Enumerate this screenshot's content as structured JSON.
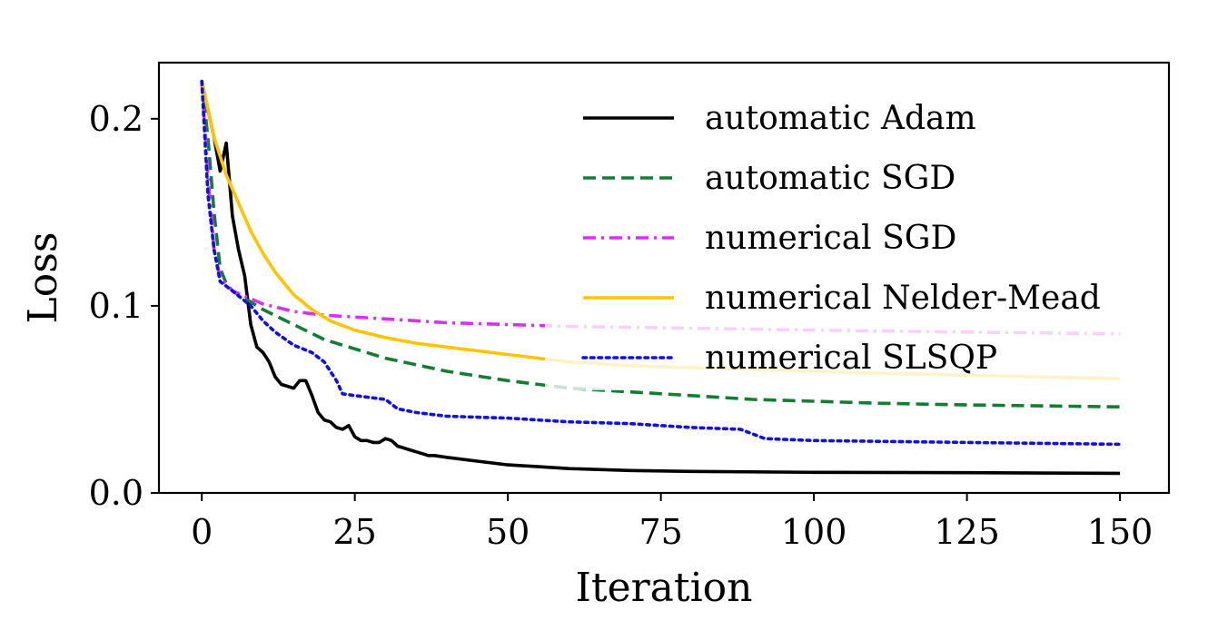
{
  "chart_data": {
    "type": "line",
    "title": "",
    "xlabel": "Iteration",
    "ylabel": "Loss",
    "xlim": [
      -7,
      158
    ],
    "ylim": [
      0.0,
      0.23
    ],
    "xticks": [
      0,
      25,
      50,
      75,
      100,
      125,
      150
    ],
    "xtick_labels": [
      "0",
      "25",
      "50",
      "75",
      "100",
      "125",
      "150"
    ],
    "yticks": [
      0.0,
      0.1,
      0.2
    ],
    "ytick_labels": [
      "0.0",
      "0.1",
      "0.2"
    ],
    "grid": false,
    "legend_position": "upper right",
    "series": [
      {
        "name": "automatic Adam",
        "color": "#000000",
        "dash": "solid",
        "points": [
          [
            0,
            0.22
          ],
          [
            1,
            0.205
          ],
          [
            2,
            0.19
          ],
          [
            3,
            0.172
          ],
          [
            4,
            0.187
          ],
          [
            5,
            0.148
          ],
          [
            6,
            0.13
          ],
          [
            7,
            0.116
          ],
          [
            8,
            0.09
          ],
          [
            9,
            0.078
          ],
          [
            10,
            0.075
          ],
          [
            11,
            0.07
          ],
          [
            12,
            0.062
          ],
          [
            13,
            0.058
          ],
          [
            14,
            0.057
          ],
          [
            15,
            0.056
          ],
          [
            16,
            0.06
          ],
          [
            17,
            0.06
          ],
          [
            18,
            0.052
          ],
          [
            19,
            0.043
          ],
          [
            20,
            0.039
          ],
          [
            21,
            0.038
          ],
          [
            22,
            0.035
          ],
          [
            23,
            0.034
          ],
          [
            24,
            0.036
          ],
          [
            25,
            0.03
          ],
          [
            26,
            0.028
          ],
          [
            27,
            0.028
          ],
          [
            28,
            0.027
          ],
          [
            29,
            0.027
          ],
          [
            30,
            0.029
          ],
          [
            31,
            0.028
          ],
          [
            32,
            0.025
          ],
          [
            33,
            0.024
          ],
          [
            34,
            0.023
          ],
          [
            35,
            0.022
          ],
          [
            36,
            0.021
          ],
          [
            37,
            0.02
          ],
          [
            38,
            0.02
          ],
          [
            40,
            0.019
          ],
          [
            45,
            0.017
          ],
          [
            50,
            0.015
          ],
          [
            55,
            0.014
          ],
          [
            60,
            0.013
          ],
          [
            70,
            0.012
          ],
          [
            80,
            0.0115
          ],
          [
            100,
            0.011
          ],
          [
            125,
            0.0108
          ],
          [
            150,
            0.0105
          ]
        ]
      },
      {
        "name": "automatic SGD",
        "color": "#137d33",
        "dash": "dashed",
        "points": [
          [
            0,
            0.22
          ],
          [
            1,
            0.19
          ],
          [
            2,
            0.15
          ],
          [
            3,
            0.12
          ],
          [
            4,
            0.112
          ],
          [
            5,
            0.108
          ],
          [
            10,
            0.098
          ],
          [
            15,
            0.09
          ],
          [
            20,
            0.082
          ],
          [
            25,
            0.077
          ],
          [
            30,
            0.072
          ],
          [
            40,
            0.065
          ],
          [
            50,
            0.06
          ],
          [
            60,
            0.056
          ],
          [
            70,
            0.054
          ],
          [
            80,
            0.052
          ],
          [
            90,
            0.05
          ],
          [
            100,
            0.049
          ],
          [
            110,
            0.048
          ],
          [
            125,
            0.047
          ],
          [
            150,
            0.046
          ]
        ]
      },
      {
        "name": "numerical SGD",
        "color": "#d830f0",
        "dash": "dashdot",
        "points": [
          [
            0,
            0.22
          ],
          [
            1,
            0.17
          ],
          [
            2,
            0.13
          ],
          [
            3,
            0.115
          ],
          [
            5,
            0.108
          ],
          [
            10,
            0.101
          ],
          [
            15,
            0.097
          ],
          [
            20,
            0.095
          ],
          [
            30,
            0.093
          ],
          [
            40,
            0.091
          ],
          [
            50,
            0.09
          ],
          [
            60,
            0.089
          ],
          [
            80,
            0.088
          ],
          [
            100,
            0.087
          ],
          [
            125,
            0.086
          ],
          [
            150,
            0.085
          ]
        ]
      },
      {
        "name": "numerical Nelder-Mead",
        "color": "#ffc400",
        "dash": "solid",
        "points": [
          [
            0,
            0.22
          ],
          [
            2,
            0.19
          ],
          [
            4,
            0.17
          ],
          [
            6,
            0.155
          ],
          [
            8,
            0.14
          ],
          [
            10,
            0.128
          ],
          [
            12,
            0.118
          ],
          [
            15,
            0.106
          ],
          [
            18,
            0.098
          ],
          [
            21,
            0.092
          ],
          [
            25,
            0.087
          ],
          [
            30,
            0.083
          ],
          [
            35,
            0.08
          ],
          [
            40,
            0.078
          ],
          [
            45,
            0.076
          ],
          [
            50,
            0.074
          ],
          [
            55,
            0.072
          ],
          [
            60,
            0.07
          ],
          [
            70,
            0.068
          ],
          [
            80,
            0.067
          ],
          [
            90,
            0.066
          ],
          [
            100,
            0.065
          ],
          [
            110,
            0.064
          ],
          [
            125,
            0.063
          ],
          [
            150,
            0.061
          ]
        ]
      },
      {
        "name": "numerical SLSQP",
        "color": "#1010e6",
        "dash": "dotted",
        "points": [
          [
            0,
            0.22
          ],
          [
            1,
            0.16
          ],
          [
            2,
            0.13
          ],
          [
            3,
            0.113
          ],
          [
            5,
            0.108
          ],
          [
            8,
            0.1
          ],
          [
            10,
            0.092
          ],
          [
            12,
            0.086
          ],
          [
            15,
            0.079
          ],
          [
            18,
            0.075
          ],
          [
            20,
            0.07
          ],
          [
            22,
            0.06
          ],
          [
            23,
            0.053
          ],
          [
            25,
            0.052
          ],
          [
            30,
            0.05
          ],
          [
            32,
            0.045
          ],
          [
            35,
            0.043
          ],
          [
            40,
            0.041
          ],
          [
            50,
            0.04
          ],
          [
            60,
            0.038
          ],
          [
            70,
            0.037
          ],
          [
            80,
            0.035
          ],
          [
            88,
            0.034
          ],
          [
            92,
            0.029
          ],
          [
            100,
            0.028
          ],
          [
            125,
            0.027
          ],
          [
            150,
            0.026
          ]
        ]
      }
    ]
  }
}
